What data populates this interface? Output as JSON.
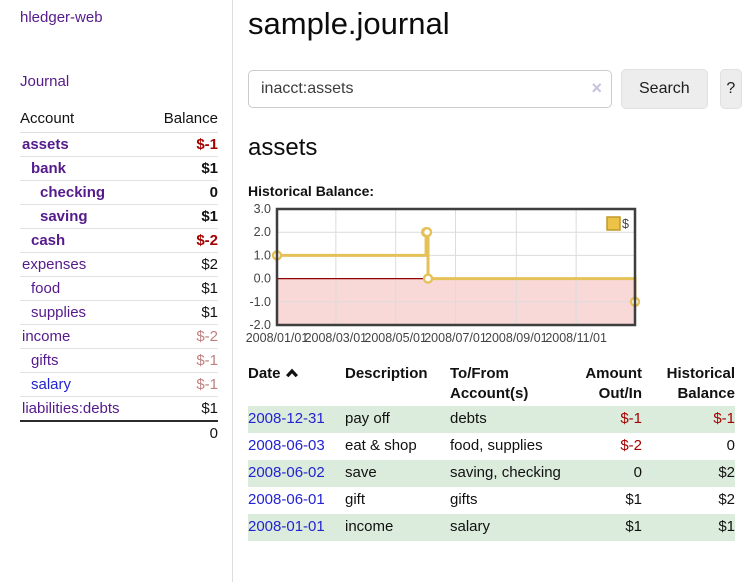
{
  "sidebar": {
    "app_title": "hledger-web",
    "journal_link": "Journal",
    "accounts": {
      "headers": {
        "account": "Account",
        "balance": "Balance"
      },
      "rows": [
        {
          "name": "assets",
          "depth": 1,
          "bold": true,
          "balance": "$-1",
          "balance_style": "neg"
        },
        {
          "name": "bank",
          "depth": 2,
          "bold": true,
          "balance": "$1",
          "balance_style": "pos"
        },
        {
          "name": "checking",
          "depth": 3,
          "bold": true,
          "balance": "0",
          "balance_style": "pos"
        },
        {
          "name": "saving",
          "depth": 3,
          "bold": true,
          "balance": "$1",
          "balance_style": "pos"
        },
        {
          "name": "cash",
          "depth": 2,
          "bold": true,
          "balance": "$-2",
          "balance_style": "neg"
        },
        {
          "name": "expenses",
          "depth": 1,
          "bold": false,
          "balance": "$2",
          "balance_style": "pos"
        },
        {
          "name": "food",
          "depth": 2,
          "bold": false,
          "balance": "$1",
          "balance_style": "pos"
        },
        {
          "name": "supplies",
          "depth": 2,
          "bold": false,
          "balance": "$1",
          "balance_style": "pos"
        },
        {
          "name": "income",
          "depth": 1,
          "bold": false,
          "balance": "$-2",
          "balance_style": "neg-soft"
        },
        {
          "name": "gifts",
          "depth": 2,
          "bold": false,
          "balance": "$-1",
          "balance_style": "neg-soft"
        },
        {
          "name": "salary",
          "depth": 2,
          "bold": false,
          "balance": "$-1",
          "balance_style": "neg-soft",
          "link_style": "unvisited"
        },
        {
          "name": "liabilities:debts",
          "depth": 1,
          "bold": false,
          "balance": "$1",
          "balance_style": "pos"
        }
      ],
      "total": "0"
    }
  },
  "header": {
    "title": "sample.journal"
  },
  "search": {
    "value": "inacct:assets",
    "clear_icon": "×",
    "button_label": "Search",
    "help_label": "?"
  },
  "main": {
    "account_heading": "assets",
    "chart_label": "Historical Balance:"
  },
  "chart_data": {
    "type": "line-step",
    "title": "Historical Balance:",
    "legend": [
      "$"
    ],
    "legend_position": "top-right",
    "grid": true,
    "xlim_days": [
      0,
      365
    ],
    "ylim": [
      -2,
      3
    ],
    "y_ticks": [
      "3.0",
      "2.0",
      "1.0",
      "0.0",
      "-1.0",
      "-2.0"
    ],
    "x_ticks": [
      {
        "label": "2008/01/01",
        "day": 0
      },
      {
        "label": "2008/03/01",
        "day": 60
      },
      {
        "label": "2008/05/01",
        "day": 121
      },
      {
        "label": "2008/07/01",
        "day": 182
      },
      {
        "label": "2008/09/01",
        "day": 244
      },
      {
        "label": "2008/11/01",
        "day": 305
      }
    ],
    "series": [
      {
        "name": "$",
        "points": [
          {
            "date": "2008-01-01",
            "day": 0,
            "value": 1
          },
          {
            "date": "2008-06-01",
            "day": 152,
            "value": 2
          },
          {
            "date": "2008-06-02",
            "day": 153,
            "value": 2
          },
          {
            "date": "2008-06-03",
            "day": 154,
            "value": 0
          },
          {
            "date": "2008-12-31",
            "day": 365,
            "value": -1
          }
        ]
      }
    ],
    "colors": {
      "line": "#e5c158",
      "marker_fill": "#ffffff",
      "negative_fill": "#f9d8d8",
      "zero_line": "#8f0000",
      "grid": "#dcdcdc",
      "border": "#3e3e3e",
      "legend_fill": "#ecc347",
      "legend_border": "#c2992a"
    }
  },
  "register": {
    "headers": {
      "date": "Date",
      "description": "Description",
      "tofrom": "To/From Account(s)",
      "amount": "Amount Out/In",
      "balance": "Historical Balance"
    },
    "sort_icon": "chevron-up",
    "rows": [
      {
        "date": "2008-12-31",
        "description": "pay off",
        "accounts": "debts",
        "amount": "$-1",
        "amount_neg": true,
        "balance": "$-1",
        "balance_neg": true,
        "shaded": true
      },
      {
        "date": "2008-06-03",
        "description": "eat & shop",
        "accounts": "food, supplies",
        "amount": "$-2",
        "amount_neg": true,
        "balance": "0",
        "balance_neg": false,
        "shaded": false
      },
      {
        "date": "2008-06-02",
        "description": "save",
        "accounts": "saving, checking",
        "amount": "0",
        "amount_neg": false,
        "balance": "$2",
        "balance_neg": false,
        "shaded": true
      },
      {
        "date": "2008-06-01",
        "description": "gift",
        "accounts": "gifts",
        "amount": "$1",
        "amount_neg": false,
        "balance": "$2",
        "balance_neg": false,
        "shaded": false
      },
      {
        "date": "2008-01-01",
        "description": "income",
        "accounts": "salary",
        "amount": "$1",
        "amount_neg": false,
        "balance": "$1",
        "balance_neg": false,
        "shaded": true
      }
    ]
  }
}
